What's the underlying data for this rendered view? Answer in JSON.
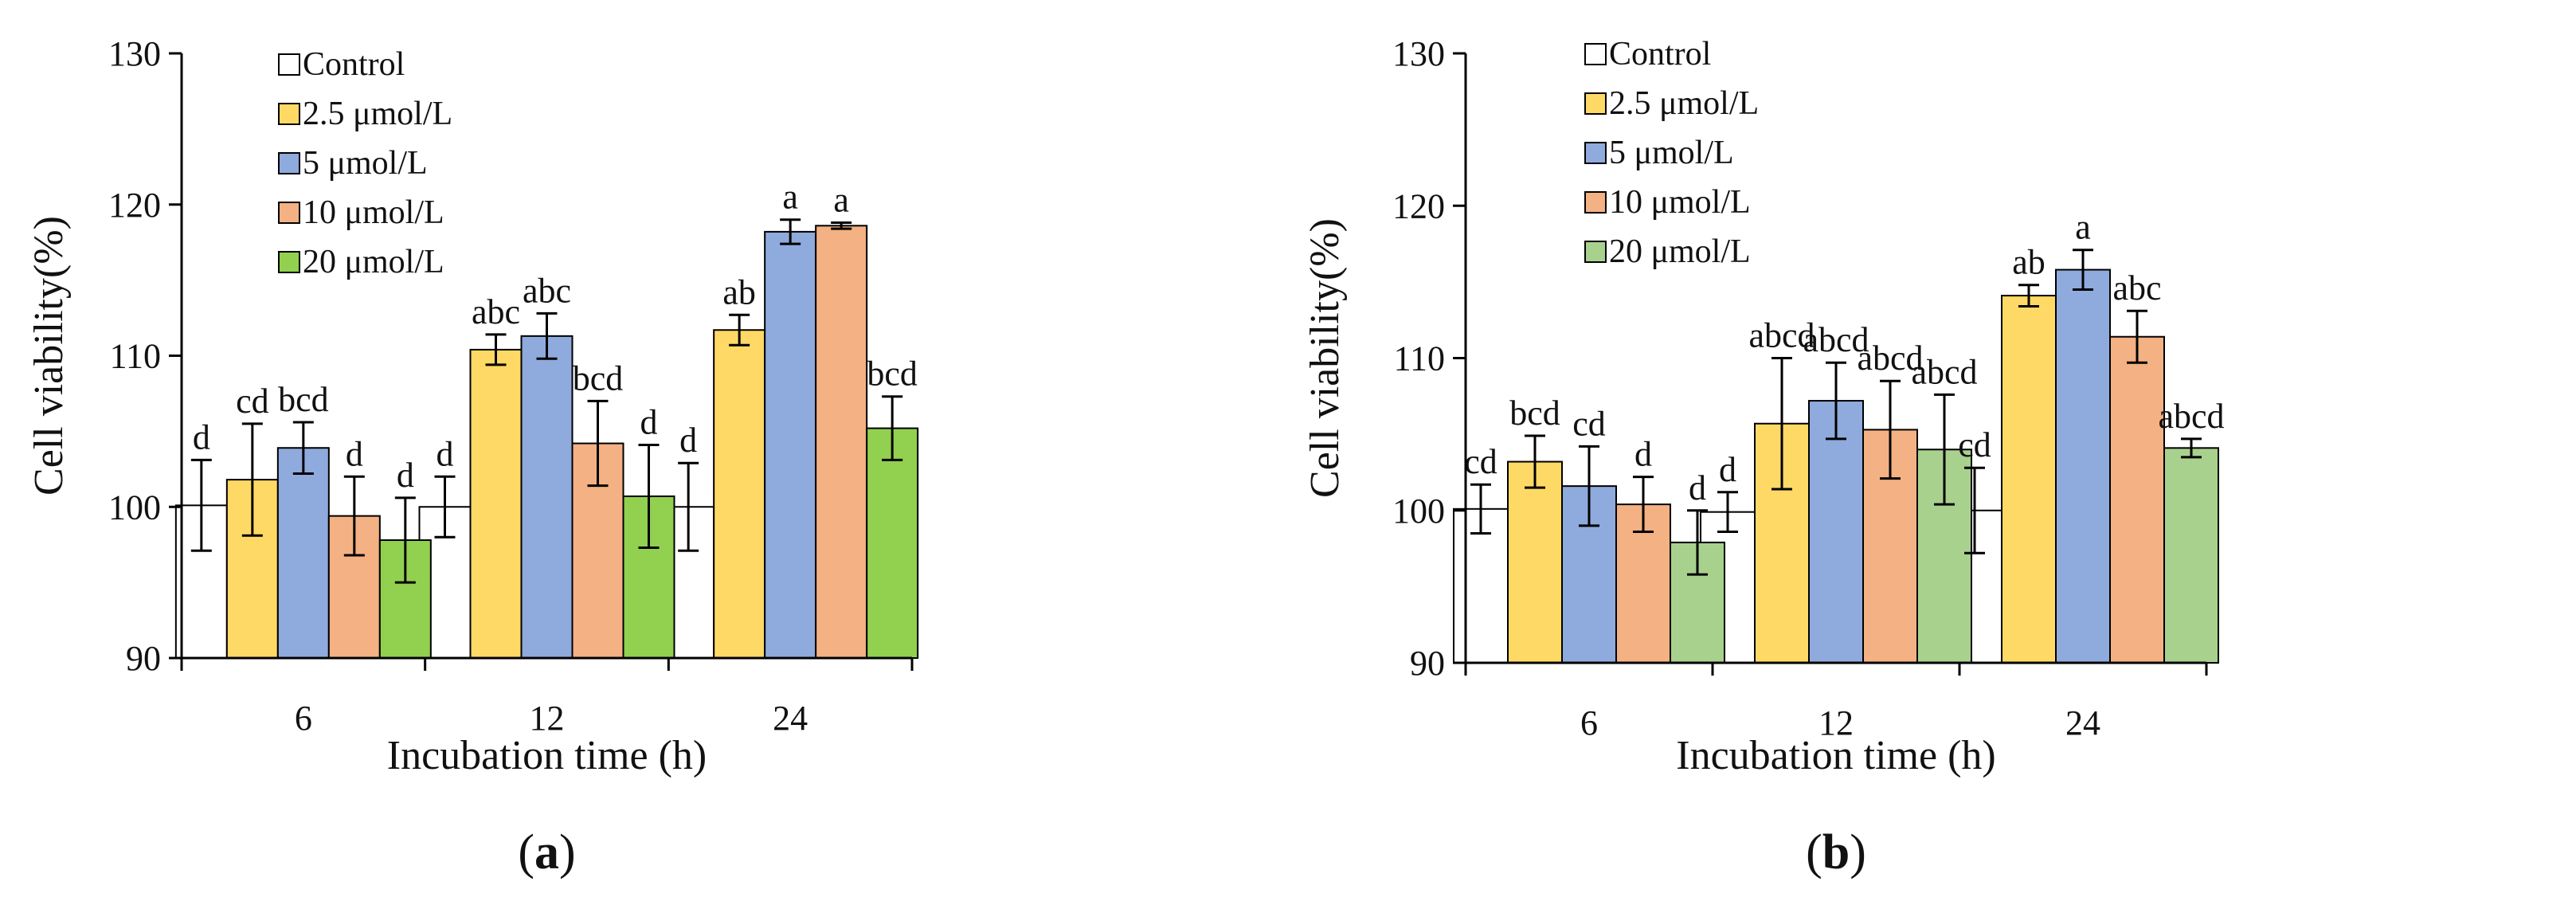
{
  "chart_data": [
    {
      "id": "a",
      "type": "bar",
      "panel_label": {
        "prefix": "(",
        "letter": "a",
        "suffix": ")"
      },
      "title": "",
      "xlabel": "Incubation time (h)",
      "ylabel": "Cell viability(%)",
      "ylim": [
        90,
        130
      ],
      "yticks": [
        90,
        100,
        110,
        120,
        130
      ],
      "categories": [
        "6",
        "12",
        "24"
      ],
      "grid": false,
      "legend_position": "top-left",
      "series": [
        {
          "name": "Control",
          "color": "#ffffff",
          "values": [
            100.1,
            100.0,
            100.0
          ],
          "errors": [
            3.0,
            2.0,
            2.9
          ],
          "labels": [
            "d",
            "d",
            "d"
          ]
        },
        {
          "name": "2.5 μmol/L",
          "color": "#ffd966",
          "values": [
            101.8,
            110.4,
            111.7
          ],
          "errors": [
            3.7,
            1.0,
            1.0
          ],
          "labels": [
            "cd",
            "abc",
            "ab"
          ]
        },
        {
          "name": "5 μmol/L",
          "color": "#8faadc",
          "values": [
            103.9,
            111.3,
            118.2
          ],
          "errors": [
            1.7,
            1.5,
            0.8
          ],
          "labels": [
            "bcd",
            "abc",
            "a"
          ]
        },
        {
          "name": "10 μmol/L",
          "color": "#f4b183",
          "values": [
            99.4,
            104.2,
            118.6
          ],
          "errors": [
            2.6,
            2.8,
            0.2
          ],
          "labels": [
            "d",
            "bcd",
            "a"
          ]
        },
        {
          "name": "20 μmol/L",
          "color": "#92d050",
          "values": [
            97.8,
            100.7,
            105.2
          ],
          "errors": [
            2.8,
            3.4,
            2.1
          ],
          "labels": [
            "d",
            "d",
            "bcd"
          ]
        }
      ]
    },
    {
      "id": "b",
      "type": "bar",
      "panel_label": {
        "prefix": "(",
        "letter": "b",
        "suffix": ")"
      },
      "title": "",
      "xlabel": "Incubation time (h)",
      "ylabel": "Cell viability(%)",
      "ylim": [
        90,
        130
      ],
      "yticks": [
        90,
        100,
        110,
        120,
        130
      ],
      "categories": [
        "6",
        "12",
        "24"
      ],
      "grid": false,
      "legend_position": "top-left",
      "series": [
        {
          "name": "Control",
          "color": "#ffffff",
          "values": [
            100.1,
            99.9,
            100.0
          ],
          "errors": [
            1.6,
            1.3,
            2.8
          ],
          "labels": [
            "cd",
            "d",
            "cd"
          ]
        },
        {
          "name": "2.5 μmol/L",
          "color": "#ffd966",
          "values": [
            103.2,
            105.7,
            114.1
          ],
          "errors": [
            1.7,
            4.3,
            0.7
          ],
          "labels": [
            "bcd",
            "abcd",
            "ab"
          ]
        },
        {
          "name": "5 μmol/L",
          "color": "#8faadc",
          "values": [
            101.6,
            107.2,
            115.8
          ],
          "errors": [
            2.6,
            2.5,
            1.3
          ],
          "labels": [
            "cd",
            "abcd",
            "a"
          ]
        },
        {
          "name": "10 μmol/L",
          "color": "#f4b183",
          "values": [
            100.4,
            105.3,
            111.4
          ],
          "errors": [
            1.8,
            3.2,
            1.7
          ],
          "labels": [
            "d",
            "abcd",
            "abc"
          ]
        },
        {
          "name": "20 μmol/L",
          "color": "#a9d18e",
          "values": [
            97.9,
            104.0,
            104.1
          ],
          "errors": [
            2.1,
            3.6,
            0.6
          ],
          "labels": [
            "d",
            "abcd",
            "abcd"
          ]
        }
      ]
    }
  ]
}
